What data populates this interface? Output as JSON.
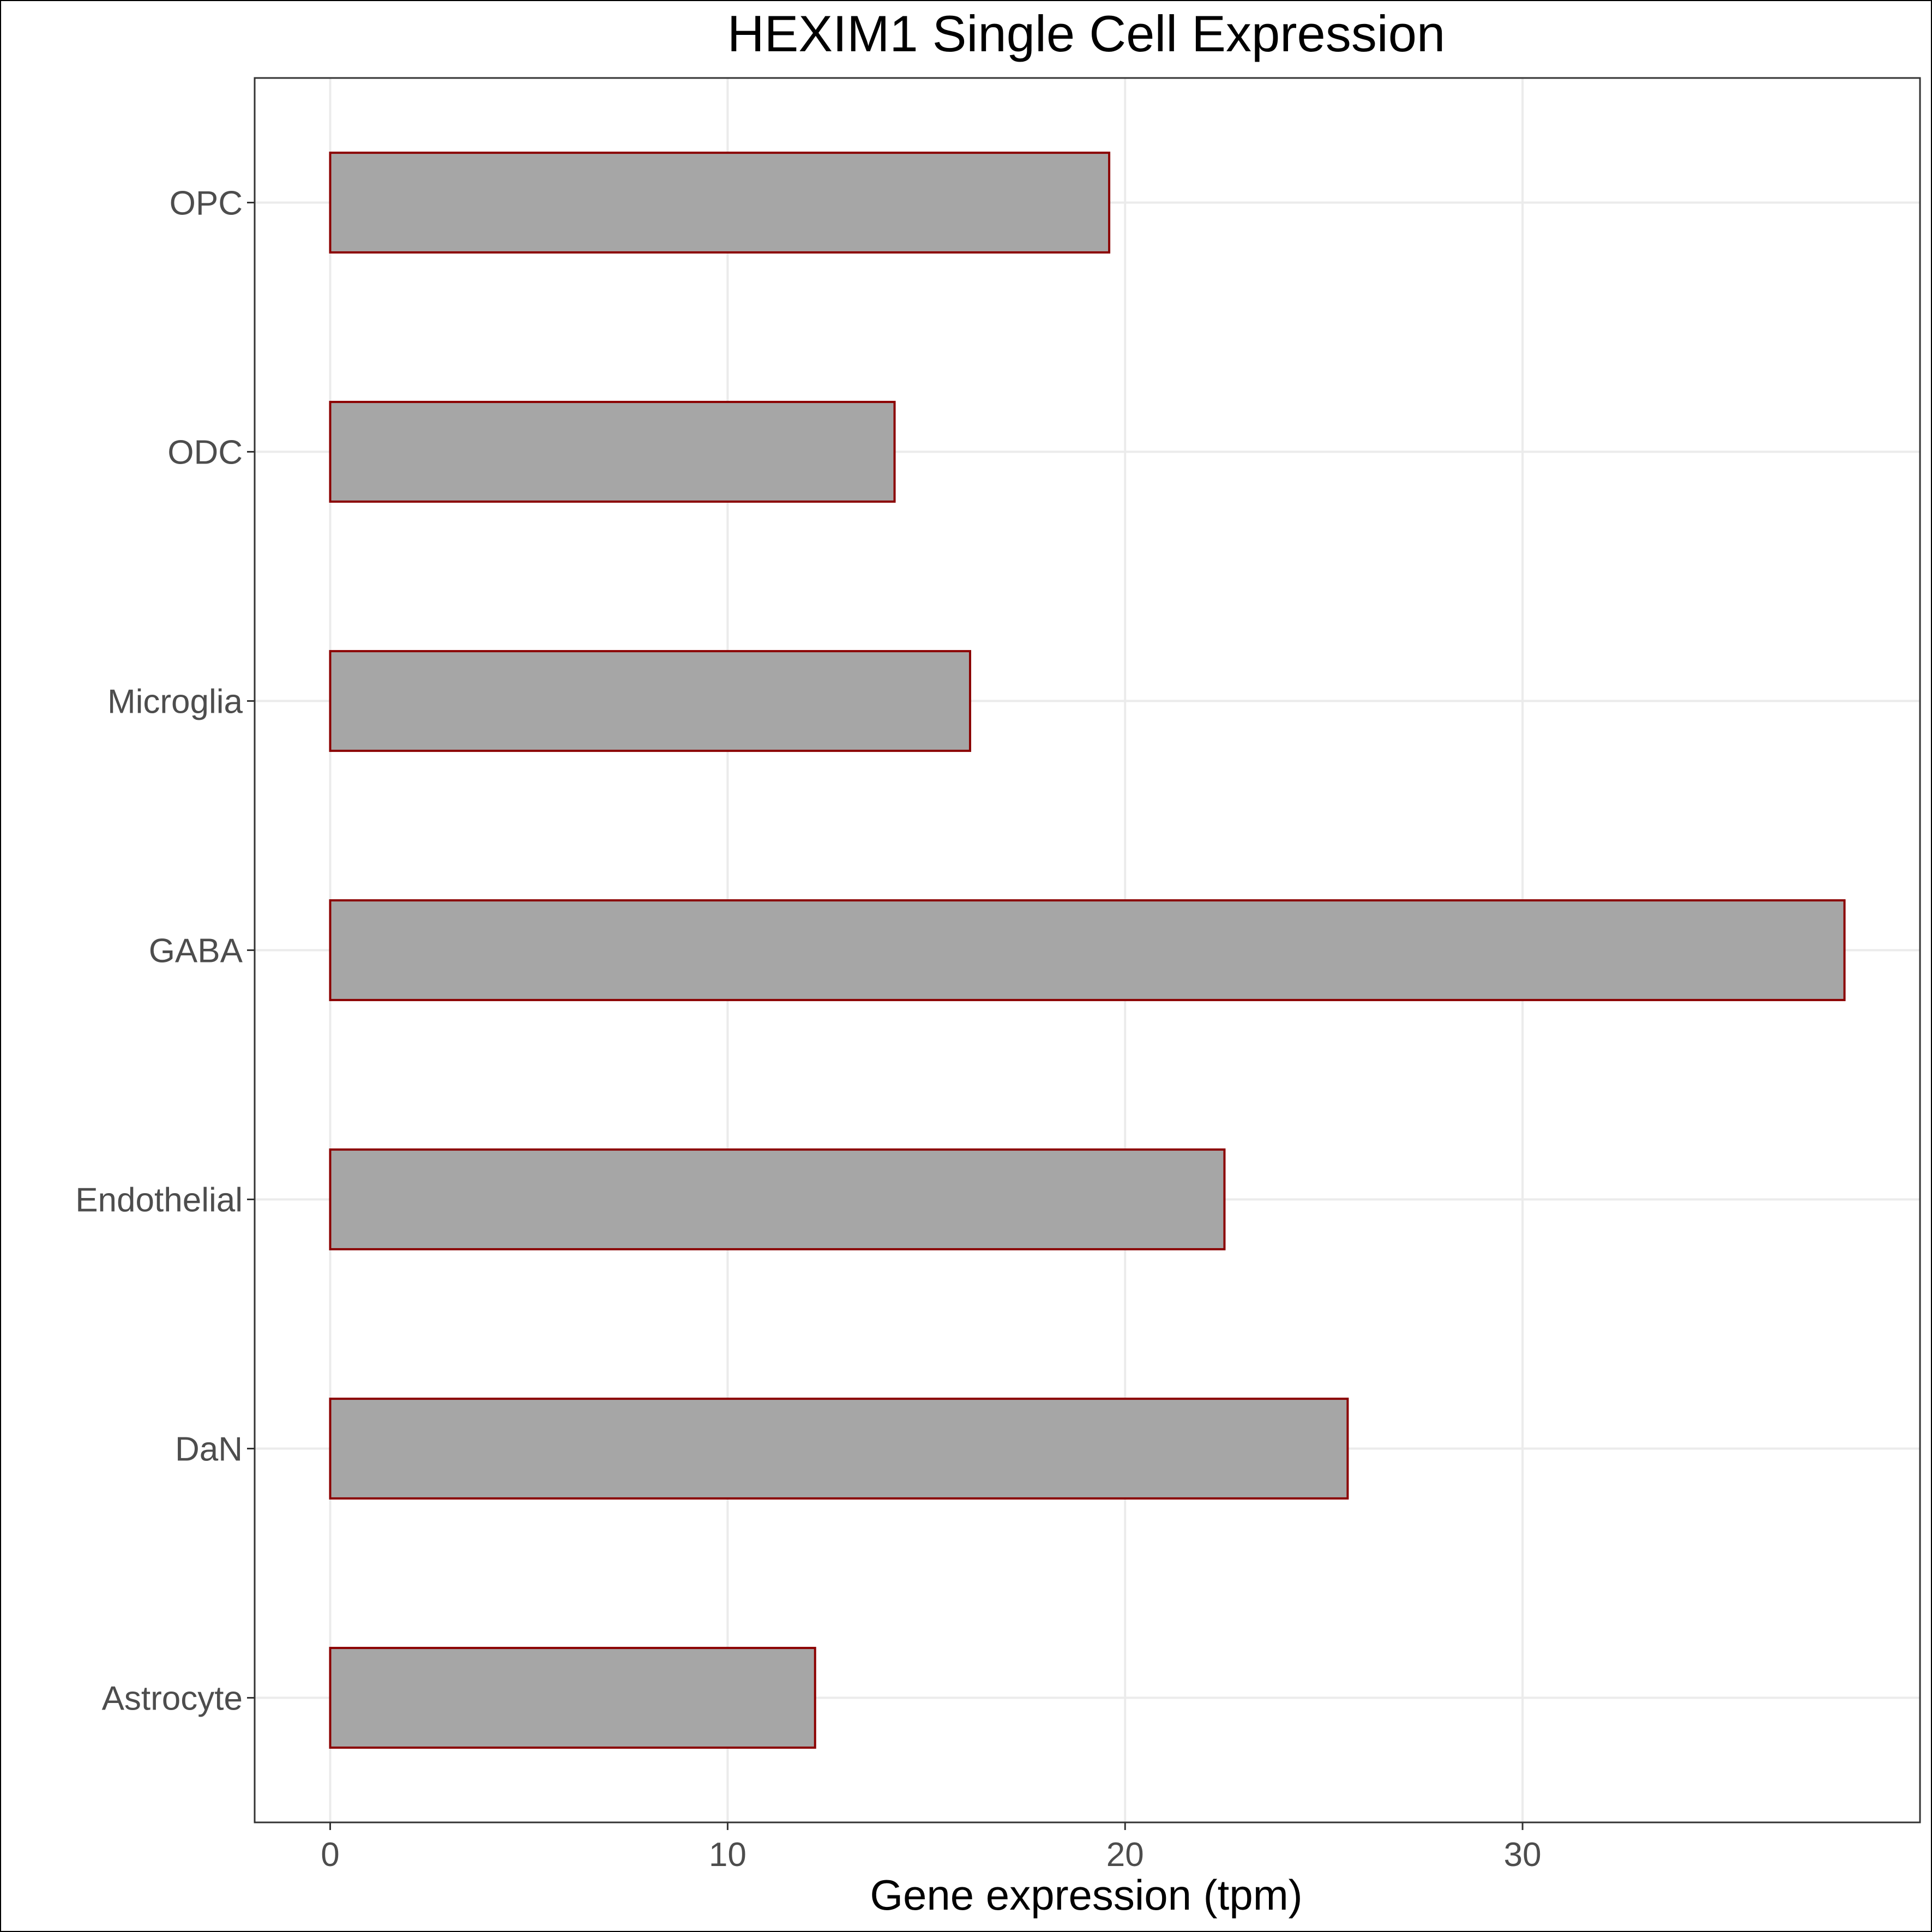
{
  "chart_data": {
    "type": "bar",
    "orientation": "horizontal",
    "title": "HEXIM1 Single Cell Expression",
    "xlabel": "Gene expression (tpm)",
    "ylabel": "",
    "categories": [
      "Astrocyte",
      "DaN",
      "Endothelial",
      "GABA",
      "Microglia",
      "ODC",
      "OPC"
    ],
    "values": [
      12.2,
      25.6,
      22.5,
      38.1,
      16.1,
      14.2,
      19.6
    ],
    "xlim": [
      -1.9,
      40.0
    ],
    "xticks": [
      0,
      10,
      20,
      30
    ],
    "grid": true,
    "legend": "none",
    "colors": {
      "bar_fill": "#a6a6a6",
      "bar_stroke": "#8b0000"
    }
  }
}
